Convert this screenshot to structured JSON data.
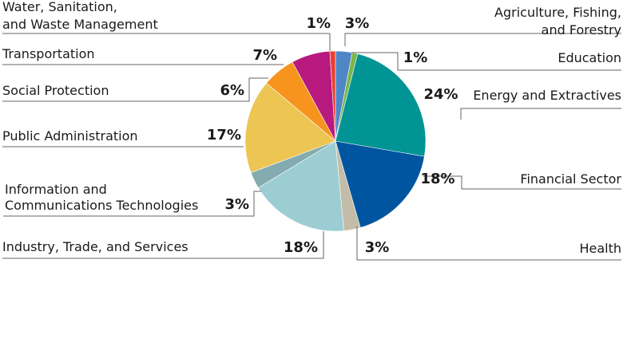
{
  "chart_data": {
    "type": "pie",
    "title": "",
    "start": "top",
    "direction": "clockwise",
    "slices": [
      {
        "label": "Agriculture, Fishing, and Forestry",
        "lines": [
          "Agriculture, Fishing,",
          "and Forestry"
        ],
        "value": 3,
        "pct": "3%",
        "color": "#4f86c6"
      },
      {
        "label": "Education",
        "lines": [
          "Education"
        ],
        "value": 1,
        "pct": "1%",
        "color": "#7ab648"
      },
      {
        "label": "Energy and Extractives",
        "lines": [
          "Energy and Extractives"
        ],
        "value": 24,
        "pct": "24%",
        "color": "#009494"
      },
      {
        "label": "Financial Sector",
        "lines": [
          "Financial Sector"
        ],
        "value": 18,
        "pct": "18%",
        "color": "#0055a0"
      },
      {
        "label": "Health",
        "lines": [
          "Health"
        ],
        "value": 3,
        "pct": "3%",
        "color": "#c2bca8"
      },
      {
        "label": "Industry, Trade, and Services",
        "lines": [
          "Industry, Trade, and Services"
        ],
        "value": 18,
        "pct": "18%",
        "color": "#9ccdd2"
      },
      {
        "label": "Information and Communications Technologies",
        "lines": [
          "Information and",
          "Communications Technologies"
        ],
        "value": 3,
        "pct": "3%",
        "color": "#84abb0"
      },
      {
        "label": "Public Administration",
        "lines": [
          "Public Administration"
        ],
        "value": 17,
        "pct": "17%",
        "color": "#ecc553"
      },
      {
        "label": "Social Protection",
        "lines": [
          "Social Protection"
        ],
        "value": 6,
        "pct": "6%",
        "color": "#f6941e"
      },
      {
        "label": "Transportation",
        "lines": [
          "Transportation"
        ],
        "value": 7,
        "pct": "7%",
        "color": "#b8197e"
      },
      {
        "label": "Water, Sanitation, and Waste Management",
        "lines": [
          "Water, Sanitation,",
          "and Waste Management"
        ],
        "value": 1,
        "pct": "1%",
        "color": "#e8412e"
      }
    ]
  }
}
